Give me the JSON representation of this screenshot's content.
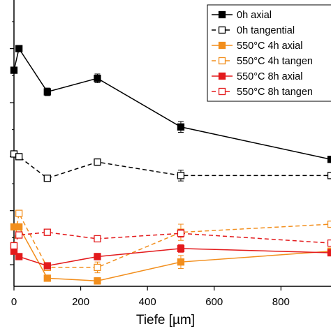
{
  "chart_data": {
    "type": "line",
    "title": "",
    "xlabel": "Tiefe [µm]",
    "ylabel": "",
    "xlim": [
      0,
      950
    ],
    "ylim": [
      -0.4,
      4.9
    ],
    "x_ticks": [
      0,
      200,
      400,
      600,
      800
    ],
    "grid": false,
    "legend_position": "top-right",
    "series": [
      {
        "name": "0h axial",
        "color": "#000000",
        "dashed": false,
        "filled": true,
        "points": [
          [
            0,
            3.6
          ],
          [
            15,
            4.0
          ],
          [
            100,
            3.2
          ],
          [
            250,
            3.45
          ],
          [
            500,
            2.55
          ],
          [
            950,
            1.95
          ]
        ],
        "errors": [
          0,
          0.05,
          0.07,
          0.08,
          0.1,
          0
        ]
      },
      {
        "name": "0h tangential",
        "color": "#000000",
        "dashed": true,
        "filled": false,
        "points": [
          [
            0,
            2.05
          ],
          [
            15,
            2.0
          ],
          [
            100,
            1.6
          ],
          [
            250,
            1.9
          ],
          [
            500,
            1.65
          ],
          [
            950,
            1.65
          ]
        ],
        "errors": [
          0,
          0.05,
          0.05,
          0.06,
          0.1,
          0
        ]
      },
      {
        "name": "550°C 4h axial",
        "color": "#f28e1c",
        "dashed": false,
        "filled": true,
        "points": [
          [
            0,
            0.7
          ],
          [
            15,
            0.7
          ],
          [
            100,
            -0.25
          ],
          [
            250,
            -0.3
          ],
          [
            500,
            0.05
          ],
          [
            950,
            0.25
          ]
        ],
        "errors": [
          0,
          0.05,
          0.05,
          0.06,
          0.12,
          0
        ]
      },
      {
        "name": "550°C 4h tangen",
        "color": "#f28e1c",
        "dashed": true,
        "filled": false,
        "points": [
          [
            0,
            0.35
          ],
          [
            15,
            0.95
          ],
          [
            100,
            -0.05
          ],
          [
            250,
            -0.05
          ],
          [
            500,
            0.6
          ],
          [
            950,
            0.75
          ]
        ],
        "errors": [
          0,
          0.05,
          0.05,
          0.1,
          0.15,
          0
        ]
      },
      {
        "name": "550°C 8h axial",
        "color": "#e31a1c",
        "dashed": false,
        "filled": true,
        "points": [
          [
            0,
            0.25
          ],
          [
            15,
            0.15
          ],
          [
            100,
            -0.02
          ],
          [
            250,
            0.15
          ],
          [
            500,
            0.3
          ],
          [
            950,
            0.22
          ]
        ],
        "errors": [
          0,
          0.04,
          0.04,
          0.06,
          0.07,
          0
        ]
      },
      {
        "name": "550°C 8h tangen",
        "color": "#e31a1c",
        "dashed": true,
        "filled": false,
        "points": [
          [
            0,
            0.35
          ],
          [
            15,
            0.55
          ],
          [
            100,
            0.6
          ],
          [
            250,
            0.48
          ],
          [
            500,
            0.58
          ],
          [
            950,
            0.4
          ]
        ],
        "errors": [
          0,
          0.04,
          0.06,
          0.05,
          0.07,
          0
        ]
      }
    ]
  }
}
